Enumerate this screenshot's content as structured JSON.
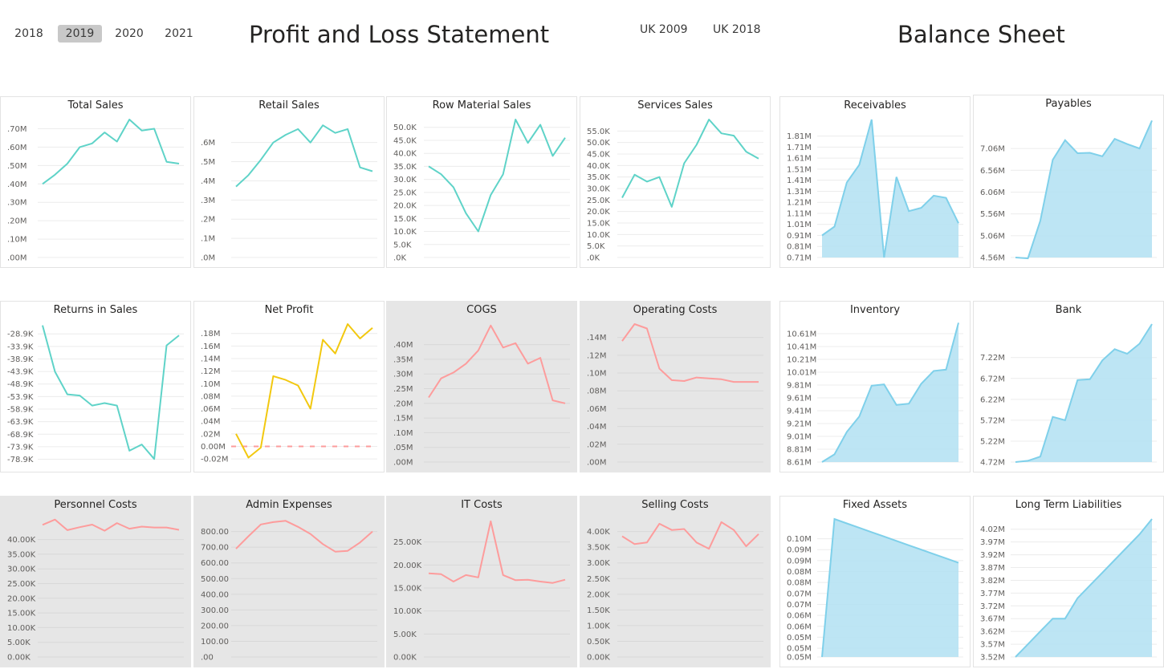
{
  "years": [
    {
      "label": "2018",
      "active": false
    },
    {
      "label": "2019",
      "active": true
    },
    {
      "label": "2020",
      "active": false
    },
    {
      "label": "2021",
      "active": false
    }
  ],
  "pl_title": "Profit and Loss Statement",
  "bs_title": "Balance Sheet",
  "uk": [
    "UK 2009",
    "UK 2018"
  ],
  "colors": {
    "teal": "#5fd3c8",
    "yellow": "#f2c80f",
    "salmon": "#fd9c9c",
    "area_line": "#7fd0ea",
    "area_fill": "#b6e2f3",
    "zero_dash": "#fd9c9c"
  },
  "chart_data": [
    {
      "id": "total-sales",
      "title": "Total Sales",
      "type": "line",
      "color": "teal",
      "ylim": [
        0.0,
        0.75
      ],
      "ticks": [
        0.7,
        0.6,
        0.5,
        0.4,
        0.3,
        0.2,
        0.1,
        0.0
      ],
      "tick_labels": [
        ".70M",
        ".60M",
        ".50M",
        ".40M",
        ".30M",
        ".20M",
        ".10M",
        ".00M"
      ],
      "values": [
        0.4,
        0.45,
        0.51,
        0.6,
        0.62,
        0.68,
        0.63,
        0.75,
        0.69,
        0.7,
        0.52,
        0.51
      ]
    },
    {
      "id": "retail-sales",
      "title": "Retail Sales",
      "type": "line",
      "color": "teal",
      "ylim": [
        0.0,
        0.72
      ],
      "ticks": [
        0.6,
        0.5,
        0.4,
        0.3,
        0.2,
        0.1,
        0.0
      ],
      "tick_labels": [
        ".6M",
        ".5M",
        ".4M",
        ".3M",
        ".2M",
        ".1M",
        ".0M"
      ],
      "values": [
        0.37,
        0.43,
        0.51,
        0.6,
        0.64,
        0.67,
        0.6,
        0.69,
        0.65,
        0.67,
        0.47,
        0.45
      ]
    },
    {
      "id": "row-material-sales",
      "title": "Row Material Sales",
      "type": "line",
      "color": "teal",
      "ylim": [
        0,
        53
      ],
      "ticks": [
        50,
        45,
        40,
        35,
        30,
        25,
        20,
        15,
        10,
        5,
        0
      ],
      "tick_labels": [
        "50.0K",
        "45.0K",
        "40.0K",
        "35.0K",
        "30.0K",
        "25.0K",
        "20.0K",
        "15.0K",
        "10.0K",
        "5.0K",
        ".0K"
      ],
      "values": [
        35,
        32,
        27,
        17,
        10,
        24,
        32,
        53,
        44,
        51,
        39,
        46
      ]
    },
    {
      "id": "services-sales",
      "title": "Services Sales",
      "type": "line",
      "color": "teal",
      "ylim": [
        0,
        60
      ],
      "ticks": [
        55,
        50,
        45,
        40,
        35,
        30,
        25,
        20,
        15,
        10,
        5,
        0
      ],
      "tick_labels": [
        "55.0K",
        "50.0K",
        "45.0K",
        "40.0K",
        "35.0K",
        "30.0K",
        "25.0K",
        "20.0K",
        "15.0K",
        "10.0K",
        "5.0K",
        ".0K"
      ],
      "values": [
        26,
        36,
        33,
        35,
        22,
        41,
        49,
        60,
        54,
        53,
        46,
        43
      ]
    },
    {
      "id": "receivables",
      "title": "Receivables",
      "type": "area",
      "ylim": [
        0.71,
        1.96
      ],
      "ticks": [
        1.81,
        1.71,
        1.61,
        1.51,
        1.41,
        1.31,
        1.21,
        1.11,
        1.01,
        0.91,
        0.81,
        0.71
      ],
      "tick_labels": [
        "1.81M",
        "1.71M",
        "1.61M",
        "1.51M",
        "1.41M",
        "1.31M",
        "1.21M",
        "1.11M",
        "1.01M",
        "0.91M",
        "0.81M",
        "0.71M"
      ],
      "values": [
        0.91,
        0.99,
        1.39,
        1.55,
        1.96,
        0.71,
        1.44,
        1.13,
        1.16,
        1.27,
        1.25,
        1.02
      ]
    },
    {
      "id": "payables",
      "title": "Payables",
      "type": "area",
      "ylim": [
        4.56,
        7.76
      ],
      "ticks": [
        7.06,
        6.56,
        6.06,
        5.56,
        5.06,
        4.56
      ],
      "tick_labels": [
        "7.06M",
        "6.56M",
        "6.06M",
        "5.56M",
        "5.06M",
        "4.56M"
      ],
      "values": [
        4.56,
        4.54,
        5.4,
        6.8,
        7.25,
        6.95,
        6.96,
        6.88,
        7.28,
        7.16,
        7.06,
        7.7
      ]
    },
    {
      "id": "returns-in-sales",
      "title": "Returns in Sales",
      "type": "line",
      "color": "teal",
      "ylim": [
        -80,
        -25
      ],
      "ticks": [
        -28.9,
        -33.9,
        -38.9,
        -43.9,
        -48.9,
        -53.9,
        -58.9,
        -63.9,
        -68.9,
        -73.9,
        -78.9
      ],
      "tick_labels": [
        "-28.9K",
        "-33.9K",
        "-38.9K",
        "-43.9K",
        "-48.9K",
        "-53.9K",
        "-58.9K",
        "-63.9K",
        "-68.9K",
        "-73.9K",
        "-78.9K"
      ],
      "values": [
        -25.5,
        -44,
        -53,
        -53.5,
        -57.5,
        -56.5,
        -57.5,
        -75.5,
        -73,
        -78.8,
        -33.5,
        -29.5
      ]
    },
    {
      "id": "net-profit",
      "title": "Net Profit",
      "type": "line",
      "color": "yellow",
      "zero_line": true,
      "ylim": [
        -0.025,
        0.195
      ],
      "ticks": [
        0.18,
        0.16,
        0.14,
        0.12,
        0.1,
        0.08,
        0.06,
        0.04,
        0.02,
        0.0,
        -0.02
      ],
      "tick_labels": [
        ".18M",
        ".16M",
        ".14M",
        ".12M",
        ".10M",
        ".08M",
        ".06M",
        ".04M",
        ".02M",
        "0.00M",
        "-0.02M"
      ],
      "values": [
        0.02,
        -0.018,
        -0.002,
        0.112,
        0.106,
        0.097,
        0.06,
        0.17,
        0.148,
        0.195,
        0.172,
        0.189
      ]
    },
    {
      "id": "cogs",
      "title": "COGS",
      "type": "line",
      "color": "salmon",
      "gray": true,
      "ylim": [
        0,
        0.47
      ],
      "ticks": [
        0.4,
        0.35,
        0.3,
        0.25,
        0.2,
        0.15,
        0.1,
        0.05,
        0.0
      ],
      "tick_labels": [
        ".40M",
        ".35M",
        ".30M",
        ".25M",
        ".20M",
        ".15M",
        ".10M",
        ".05M",
        ".00M"
      ],
      "values": [
        0.22,
        0.285,
        0.305,
        0.335,
        0.38,
        0.465,
        0.39,
        0.405,
        0.335,
        0.355,
        0.21,
        0.2
      ]
    },
    {
      "id": "operating-costs",
      "title": "Operating Costs",
      "type": "line",
      "color": "salmon",
      "gray": true,
      "ylim": [
        0,
        0.155
      ],
      "ticks": [
        0.14,
        0.12,
        0.1,
        0.08,
        0.06,
        0.04,
        0.02,
        0.0
      ],
      "tick_labels": [
        ".14M",
        ".12M",
        ".10M",
        ".08M",
        ".06M",
        ".04M",
        ".02M",
        ".00M"
      ],
      "values": [
        0.136,
        0.155,
        0.15,
        0.105,
        0.092,
        0.091,
        0.095,
        0.094,
        0.093,
        0.09,
        0.09,
        0.09
      ]
    },
    {
      "id": "inventory",
      "title": "Inventory",
      "type": "area",
      "ylim": [
        8.61,
        10.76
      ],
      "ticks": [
        10.61,
        10.41,
        10.21,
        10.01,
        9.81,
        9.61,
        9.41,
        9.21,
        9.01,
        8.81,
        8.61
      ],
      "tick_labels": [
        "10.61M",
        "10.41M",
        "10.21M",
        "10.01M",
        "9.81M",
        "9.61M",
        "9.41M",
        "9.21M",
        "9.01M",
        "8.81M",
        "8.61M"
      ],
      "values": [
        8.61,
        8.73,
        9.08,
        9.32,
        9.8,
        9.82,
        9.5,
        9.52,
        9.83,
        10.03,
        10.05,
        10.78
      ]
    },
    {
      "id": "bank",
      "title": "Bank",
      "type": "area",
      "ylim": [
        4.72,
        8.02
      ],
      "ticks": [
        7.22,
        6.72,
        6.22,
        5.72,
        5.22,
        4.72
      ],
      "tick_labels": [
        "7.22M",
        "6.72M",
        "6.22M",
        "5.72M",
        "5.22M",
        "4.72M"
      ],
      "values": [
        4.72,
        4.75,
        4.85,
        5.8,
        5.72,
        6.68,
        6.7,
        7.15,
        7.42,
        7.31,
        7.55,
        8.02
      ]
    },
    {
      "id": "personnel-costs",
      "title": "Personnel Costs",
      "type": "line",
      "color": "salmon",
      "gray": true,
      "ylim": [
        0,
        47
      ],
      "ticks": [
        40,
        35,
        30,
        25,
        20,
        15,
        10,
        5,
        0
      ],
      "tick_labels": [
        "40.00K",
        "35.00K",
        "30.00K",
        "25.00K",
        "20.00K",
        "15.00K",
        "10.00K",
        "5.00K",
        "0.00K"
      ],
      "values": [
        45,
        46.8,
        43.2,
        44.2,
        45.1,
        43,
        45.6,
        43.7,
        44.4,
        44.1,
        44.1,
        43.3
      ]
    },
    {
      "id": "admin-expenses",
      "title": "Admin Expenses",
      "type": "line",
      "color": "salmon",
      "gray": true,
      "ylim": [
        0,
        880
      ],
      "ticks": [
        800,
        700,
        600,
        500,
        400,
        300,
        200,
        100,
        0
      ],
      "tick_labels": [
        "800.00",
        "700.00",
        "600.00",
        "500.00",
        "400.00",
        "300.00",
        "200.00",
        "100.00",
        ".00"
      ],
      "values": [
        690,
        770,
        845,
        860,
        868,
        830,
        785,
        720,
        672,
        677,
        730,
        800
      ]
    },
    {
      "id": "it-costs",
      "title": "IT Costs",
      "type": "line",
      "color": "salmon",
      "gray": true,
      "ylim": [
        0,
        30
      ],
      "ticks": [
        25,
        20,
        15,
        10,
        5,
        0
      ],
      "tick_labels": [
        "25.00K",
        "20.00K",
        "15.00K",
        "10.00K",
        "5.00K",
        "0.00K"
      ],
      "values": [
        18.2,
        18,
        16.4,
        17.8,
        17.3,
        29.5,
        17.8,
        16.7,
        16.8,
        16.4,
        16.1,
        16.8
      ]
    },
    {
      "id": "selling-costs",
      "title": "Selling Costs",
      "type": "line",
      "color": "salmon",
      "gray": true,
      "ylim": [
        0,
        4.4
      ],
      "ticks": [
        4,
        3.5,
        3,
        2.5,
        2,
        1.5,
        1,
        0.5,
        0
      ],
      "tick_labels": [
        "4.00K",
        "3.50K",
        "3.00K",
        "2.50K",
        "2.00K",
        "1.50K",
        "1.00K",
        "0.50K",
        "0.00K"
      ],
      "values": [
        3.85,
        3.6,
        3.65,
        4.25,
        4.05,
        4.08,
        3.65,
        3.45,
        4.3,
        4.05,
        3.53,
        3.92
      ]
    },
    {
      "id": "fixed-assets",
      "title": "Fixed Assets",
      "type": "area",
      "ylim": [
        0.046,
        0.109
      ],
      "ticks": [
        0.1,
        0.095,
        0.09,
        0.085,
        0.08,
        0.075,
        0.07,
        0.065,
        0.06,
        0.055,
        0.05,
        0.046
      ],
      "tick_labels": [
        "0.10M",
        "0.09M",
        "0.09M",
        "0.08M",
        "0.08M",
        "0.07M",
        "0.07M",
        "0.06M",
        "0.06M",
        "0.05M",
        "0.05M",
        "0.05M"
      ],
      "values": [
        0.046,
        0.109,
        0.107,
        0.105,
        0.103,
        0.101,
        0.099,
        0.097,
        0.095,
        0.093,
        0.091,
        0.089
      ]
    },
    {
      "id": "long-term-liabilities",
      "title": "Long Term Liabilities",
      "type": "area",
      "ylim": [
        3.52,
        4.06
      ],
      "ticks": [
        4.02,
        3.97,
        3.92,
        3.87,
        3.82,
        3.77,
        3.72,
        3.67,
        3.62,
        3.57,
        3.52
      ],
      "tick_labels": [
        "4.02M",
        "3.97M",
        "3.92M",
        "3.87M",
        "3.82M",
        "3.77M",
        "3.72M",
        "3.67M",
        "3.62M",
        "3.57M",
        "3.52M"
      ],
      "values": [
        3.52,
        3.57,
        3.62,
        3.67,
        3.67,
        3.75,
        3.8,
        3.85,
        3.9,
        3.95,
        4.0,
        4.06
      ]
    }
  ]
}
